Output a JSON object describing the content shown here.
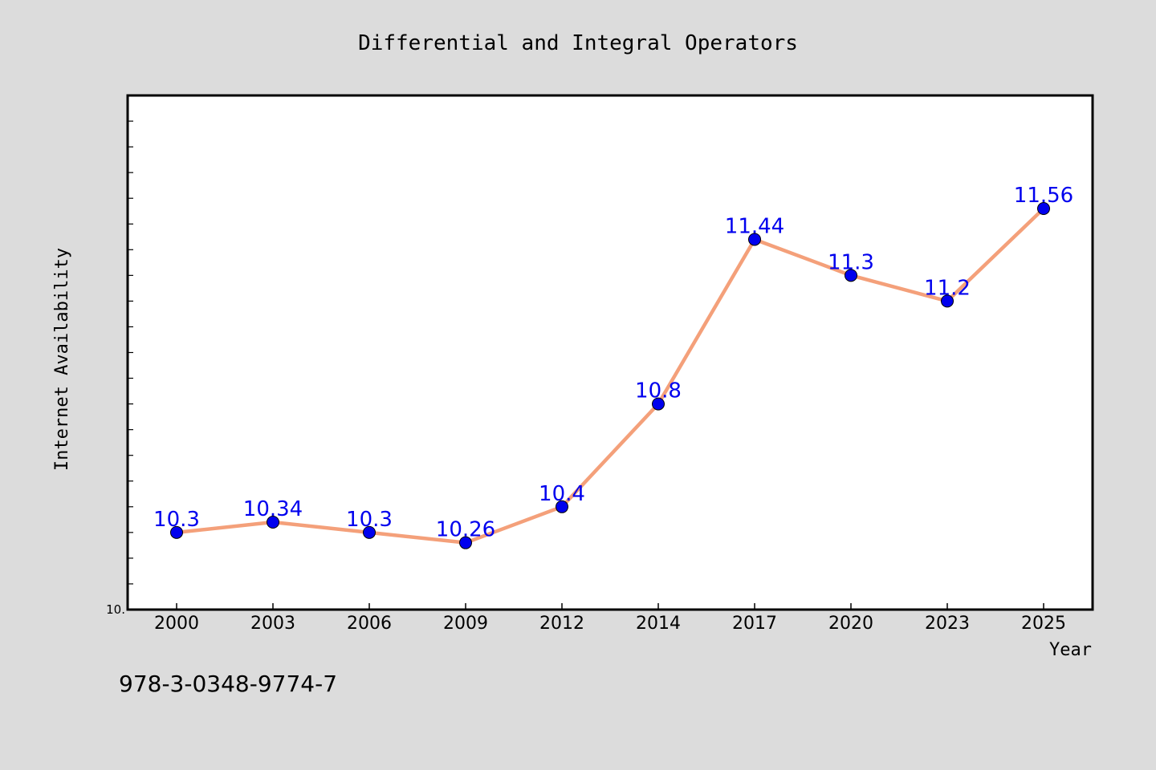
{
  "chart_data": {
    "type": "line",
    "title": "Differential and Integral Operators",
    "xlabel": "Year",
    "ylabel": "Internet Availability",
    "categories": [
      "2000",
      "2003",
      "2006",
      "2009",
      "2012",
      "2014",
      "2017",
      "2020",
      "2023",
      "2025"
    ],
    "series": [
      {
        "values": [
          10.3,
          10.34,
          10.3,
          10.26,
          10.4,
          10.8,
          11.44,
          11.3,
          11.2,
          11.56
        ],
        "labels": [
          "10.3",
          "10.34",
          "10.3",
          "10.26",
          "10.4",
          "10.8",
          "11.44",
          "11.3",
          "11.2",
          "11.56"
        ]
      }
    ],
    "ylim": [
      10.0,
      12.0
    ],
    "y_tick_labels": [
      "10."
    ],
    "grid": false,
    "colors": {
      "line": "#f4a07a",
      "marker": "#0000ee",
      "data_label": "#0000ee",
      "plot_background": "#ffffff",
      "figure_background": "#dcdcdc"
    }
  },
  "footnote": "978-3-0348-9774-7"
}
